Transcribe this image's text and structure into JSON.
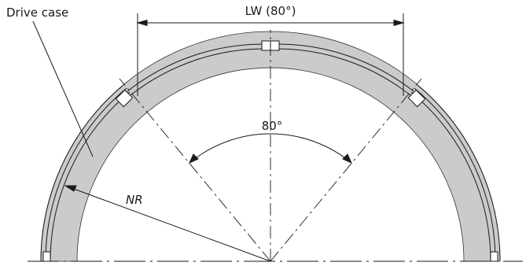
{
  "labels": {
    "drive_case": "Drive case",
    "lw": "LW (80°)",
    "angle": "80°",
    "nr": "NR"
  },
  "colors": {
    "ring_fill": "#cbcbcb",
    "line": "#1a1a1a",
    "background": "#ffffff"
  }
}
